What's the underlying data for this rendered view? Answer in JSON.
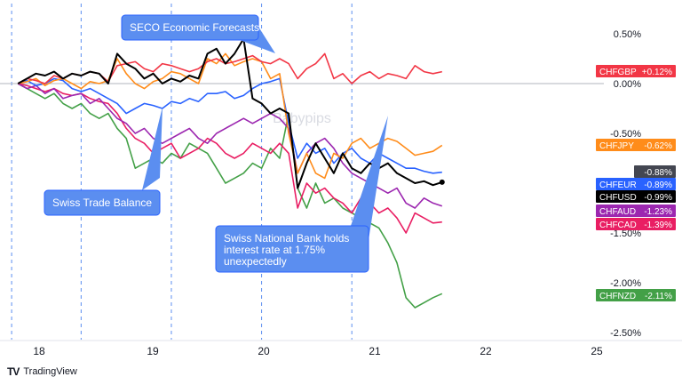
{
  "watermark": "Babypips",
  "branding": {
    "logo_mark": "TV",
    "logo_text": "TradingView"
  },
  "annotations": [
    {
      "id": "seco",
      "text": [
        "SECO Economic Forecasts"
      ]
    },
    {
      "id": "trade",
      "text": [
        "Swiss Trade Balance"
      ]
    },
    {
      "id": "snb",
      "text": [
        "Swiss National Bank holds",
        "interest rate at 1.75%",
        "unexpectedly"
      ]
    }
  ],
  "colors": {
    "CHFGBP": "#f23645",
    "CHFJPY": "#ff8c1a",
    "CHFEUR": "#2962ff",
    "CHFUSD": "#000000",
    "CHFAUD": "#9c27b0",
    "CHFCAD": "#e91e63",
    "CHFNZD": "#43a047",
    "annotation_fill": "#5b8ef0",
    "annotation_border": "#2962ff",
    "grid_line": "#5b8ef0",
    "axis_text": "#131722",
    "neutral_label": "#434651"
  },
  "chart_data": {
    "type": "line",
    "x": [
      18,
      18.1,
      18.2,
      18.3,
      18.4,
      18.5,
      18.6,
      18.7,
      18.8,
      18.9,
      19.0,
      19.1,
      19.2,
      19.3,
      19.4,
      19.5,
      19.6,
      19.7,
      19.8,
      19.9,
      20.0,
      20.1,
      20.2,
      20.3,
      20.4,
      20.5,
      20.6,
      20.7,
      20.8,
      20.9,
      21.0,
      21.1,
      21.2,
      21.3,
      21.4,
      21.5,
      21.6,
      21.7,
      21.8,
      21.9,
      22.0,
      22.1,
      22.2,
      22.3,
      22.4,
      22.5,
      22.6,
      22.7
    ],
    "xlim": [
      17.86,
      25.3
    ],
    "x_ticks": [
      "18",
      "19",
      "20",
      "21",
      "22",
      "25"
    ],
    "x_tick_positions": [
      18,
      19,
      20,
      21,
      22,
      23
    ],
    "ylim": [
      -2.55,
      0.6
    ],
    "y_ticks": [
      0.5,
      0.0,
      -0.5,
      -1.0,
      -1.5,
      -2.0,
      -2.5
    ],
    "y_tick_labels": [
      "0.50%",
      "0.00%",
      "-0.50%",
      "-1.00%",
      "-1.50%",
      "-2.00%",
      "-2.50%"
    ],
    "zero_line": 0.0,
    "event_lines_x": [
      17.93,
      18.7,
      19.7,
      20.7,
      21.7
    ],
    "series": [
      {
        "name": "CHFGBP",
        "label": "+0.12%",
        "last": 0.12,
        "values": [
          0.0,
          0.05,
          0.03,
          0.0,
          0.08,
          0.05,
          0.1,
          0.08,
          0.12,
          0.1,
          0.02,
          0.18,
          0.2,
          0.22,
          0.15,
          0.12,
          0.2,
          0.18,
          0.15,
          0.12,
          0.15,
          0.22,
          0.25,
          0.2,
          0.22,
          0.25,
          0.28,
          0.22,
          0.2,
          0.25,
          0.2,
          0.05,
          0.15,
          0.2,
          0.3,
          0.05,
          0.1,
          0.0,
          0.08,
          0.12,
          0.05,
          0.1,
          0.08,
          0.05,
          0.18,
          0.12,
          0.1,
          0.12
        ]
      },
      {
        "name": "CHFJPY",
        "label": "-0.62%",
        "last": -0.62,
        "values": [
          0.0,
          0.02,
          0.05,
          -0.02,
          0.03,
          0.05,
          0.0,
          -0.05,
          0.02,
          0.0,
          0.03,
          0.25,
          0.1,
          0.0,
          -0.05,
          0.02,
          0.05,
          0.12,
          0.1,
          0.05,
          0.0,
          0.25,
          0.2,
          0.3,
          0.18,
          0.22,
          0.25,
          0.22,
          0.05,
          0.1,
          -0.5,
          -0.9,
          -0.7,
          -0.9,
          -0.95,
          -0.7,
          -0.75,
          -0.6,
          -0.55,
          -0.65,
          -0.6,
          -0.55,
          -0.58,
          -0.65,
          -0.72,
          -0.7,
          -0.68,
          -0.62
        ]
      },
      {
        "name": "CHFEUR",
        "label": "-0.89%",
        "last": -0.89,
        "values": [
          0.0,
          0.03,
          -0.02,
          0.0,
          0.05,
          0.03,
          -0.05,
          -0.08,
          -0.05,
          -0.1,
          -0.15,
          -0.2,
          -0.3,
          -0.25,
          -0.2,
          -0.22,
          -0.25,
          -0.18,
          -0.2,
          -0.15,
          -0.18,
          -0.1,
          -0.1,
          -0.08,
          -0.15,
          -0.12,
          -0.05,
          0.0,
          0.02,
          0.05,
          -0.4,
          -0.75,
          -0.6,
          -0.7,
          -0.65,
          -0.8,
          -0.7,
          -0.65,
          -0.75,
          -0.8,
          -0.7,
          -0.75,
          -0.8,
          -0.85,
          -0.85,
          -0.88,
          -0.9,
          -0.89
        ]
      },
      {
        "name": "CHFUSD",
        "label": "-0.99%",
        "last": -0.99,
        "values": [
          0.0,
          0.05,
          0.1,
          0.08,
          0.12,
          0.05,
          0.1,
          0.08,
          0.12,
          0.1,
          0.0,
          0.3,
          0.2,
          0.15,
          0.05,
          0.1,
          0.0,
          0.05,
          0.02,
          0.08,
          0.05,
          0.3,
          0.35,
          0.2,
          0.3,
          0.45,
          -0.15,
          -0.2,
          -0.3,
          -0.25,
          -0.3,
          -1.05,
          -0.8,
          -0.6,
          -0.75,
          -0.9,
          -0.7,
          -0.85,
          -0.9,
          -0.8,
          -0.85,
          -0.8,
          -0.9,
          -0.95,
          -1.0,
          -0.98,
          -1.02,
          -0.99
        ]
      },
      {
        "name": "CHFAUD",
        "label": "-1.23%",
        "last": -1.23,
        "values": [
          0.0,
          -0.05,
          -0.02,
          -0.1,
          -0.05,
          -0.15,
          -0.12,
          -0.1,
          -0.2,
          -0.15,
          -0.25,
          -0.35,
          -0.4,
          -0.5,
          -0.45,
          -0.55,
          -0.6,
          -0.55,
          -0.5,
          -0.45,
          -0.55,
          -0.6,
          -0.5,
          -0.45,
          -0.4,
          -0.35,
          -0.4,
          -0.35,
          -0.3,
          -0.35,
          -0.45,
          -0.9,
          -0.7,
          -0.6,
          -0.55,
          -0.65,
          -0.8,
          -0.9,
          -0.95,
          -1.0,
          -1.05,
          -1.1,
          -1.05,
          -1.2,
          -1.25,
          -1.15,
          -1.2,
          -1.23
        ]
      },
      {
        "name": "CHFCAD",
        "label": "-1.39%",
        "last": -1.39,
        "values": [
          0.0,
          -0.02,
          -0.05,
          -0.08,
          -0.05,
          -0.1,
          -0.12,
          -0.1,
          -0.15,
          -0.18,
          -0.2,
          -0.3,
          -0.45,
          -0.55,
          -0.6,
          -0.7,
          -0.65,
          -0.6,
          -0.75,
          -0.7,
          -0.65,
          -0.55,
          -0.6,
          -0.7,
          -0.75,
          -0.7,
          -0.6,
          -0.65,
          -0.7,
          -0.6,
          -0.7,
          -1.25,
          -1.0,
          -1.1,
          -1.05,
          -1.15,
          -1.2,
          -1.3,
          -1.15,
          -1.2,
          -1.3,
          -1.25,
          -1.35,
          -1.5,
          -1.3,
          -1.35,
          -1.4,
          -1.39
        ]
      },
      {
        "name": "CHFNZD",
        "label": "-2.11%",
        "last": -2.11,
        "values": [
          0.0,
          -0.05,
          -0.1,
          -0.15,
          -0.1,
          -0.2,
          -0.25,
          -0.2,
          -0.3,
          -0.35,
          -0.3,
          -0.45,
          -0.55,
          -0.85,
          -0.8,
          -0.75,
          -0.8,
          -0.7,
          -0.75,
          -0.6,
          -0.65,
          -0.7,
          -0.85,
          -1.0,
          -0.95,
          -0.9,
          -0.8,
          -0.85,
          -0.65,
          -0.75,
          -0.3,
          -1.05,
          -1.25,
          -1.0,
          -1.2,
          -1.15,
          -1.25,
          -1.3,
          -1.35,
          -1.4,
          -1.45,
          -1.6,
          -1.8,
          -2.15,
          -2.25,
          -2.2,
          -2.15,
          -2.11
        ]
      }
    ],
    "extra_axis_label": {
      "text": "-0.88%"
    }
  }
}
